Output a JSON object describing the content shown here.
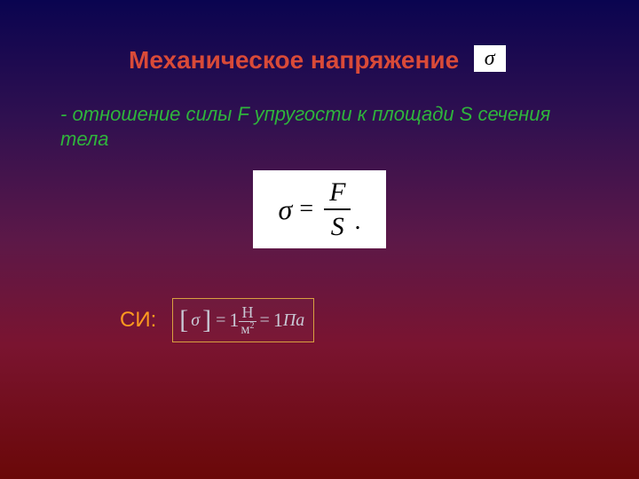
{
  "slide": {
    "title": "Механическое напряжение",
    "title_symbol": "σ",
    "definition": "- отношение силы F упругости к площади S сечения тела",
    "formula": {
      "lhs": "σ",
      "eq": "=",
      "numerator": "F",
      "denominator": "S",
      "period": "."
    },
    "si": {
      "label": "СИ:",
      "open_br": "[",
      "sigma": "σ",
      "close_br": "]",
      "eq1": "=",
      "one1": "1",
      "unit_num": "Н",
      "unit_den_base": "м",
      "unit_den_exp": "2",
      "eq2": "=",
      "one2": "1",
      "pa": "Па"
    }
  },
  "style": {
    "title_color": "#d94a38",
    "definition_color": "#2fb43c",
    "si_label_color": "#ff9a1f",
    "si_text_color": "#c8c8d4",
    "box_border_color": "#d8a040"
  }
}
